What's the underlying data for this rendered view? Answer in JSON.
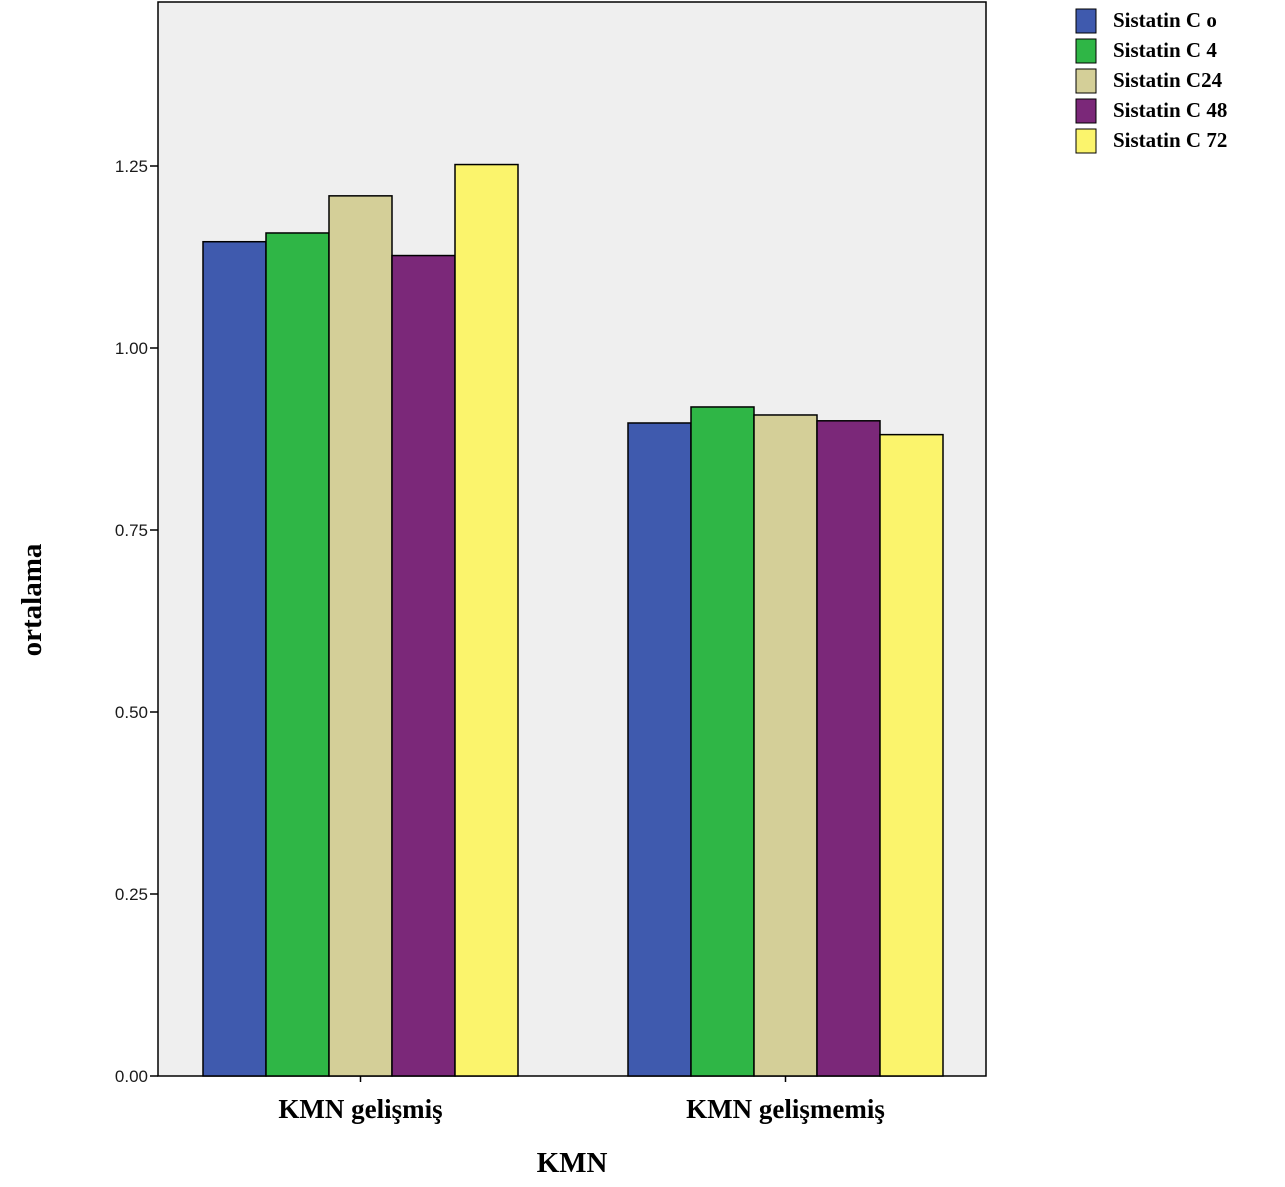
{
  "chart_data": {
    "type": "bar",
    "title": "",
    "xlabel": "KMN",
    "ylabel": "ortalama",
    "categories": [
      "KMN gelişmiş",
      "KMN gelişmemiş"
    ],
    "ylim": [
      0,
      1.4
    ],
    "yticks": [
      0.0,
      0.25,
      0.5,
      0.75,
      1.0,
      1.25
    ],
    "ytick_labels": [
      "0.00",
      "0.25",
      "0.50",
      "0.75",
      "1.00",
      "1.25"
    ],
    "grid": false,
    "legend_position": "top-right, outside plot",
    "series": [
      {
        "name": "Sistatin C o",
        "color": "#3f5aae",
        "values": [
          1.146,
          0.897
        ]
      },
      {
        "name": "Sistatin C 4",
        "color": "#2fb646",
        "values": [
          1.158,
          0.919
        ]
      },
      {
        "name": "Sistatin C24",
        "color": "#d4cf98",
        "values": [
          1.209,
          0.908
        ]
      },
      {
        "name": "Sistatin C 48",
        "color": "#7b2879",
        "values": [
          1.127,
          0.9
        ]
      },
      {
        "name": "Sistatin C 72",
        "color": "#fbf46c",
        "values": [
          1.252,
          0.881
        ]
      }
    ],
    "plot_background": "#efefef"
  }
}
